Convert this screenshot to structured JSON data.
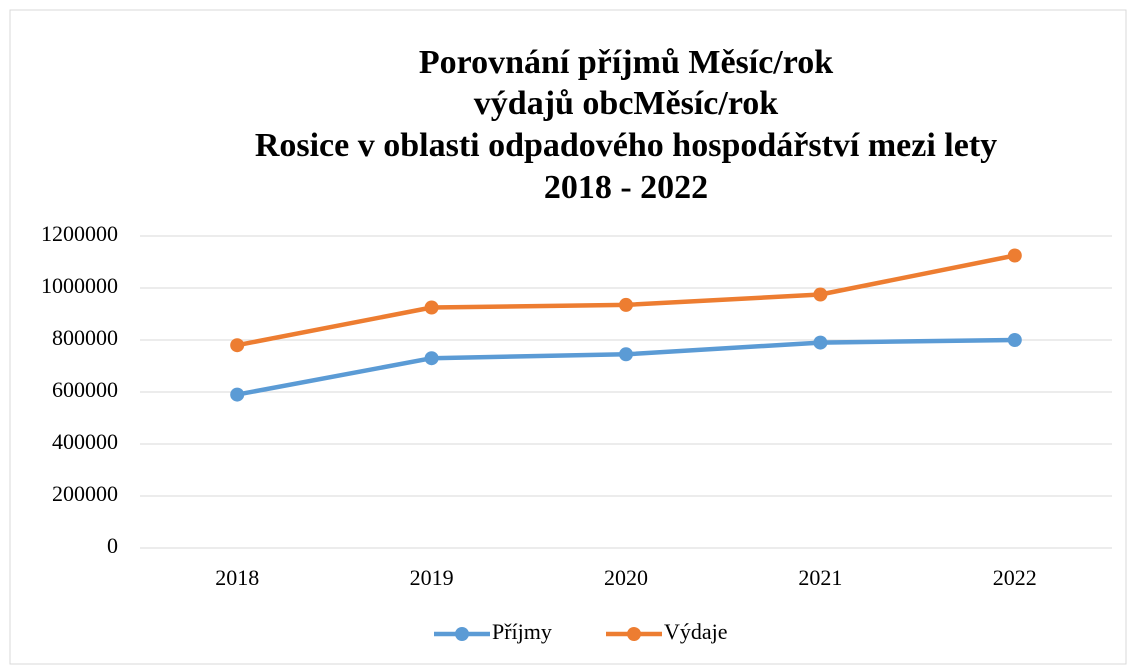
{
  "chart_data": {
    "type": "line",
    "title": [
      "Porovnání příjmů Měsíc/rok",
      "výdajů obcMěsíc/rok",
      "Rosice v oblasti odpadového hospodářství mezi lety",
      "2018 - 2022"
    ],
    "categories": [
      "2018",
      "2019",
      "2020",
      "2021",
      "2022"
    ],
    "series": [
      {
        "name": "Příjmy",
        "color": "#5b9bd5",
        "values": [
          590000,
          730000,
          745000,
          790000,
          800000
        ]
      },
      {
        "name": "Výdaje",
        "color": "#ed7d31",
        "values": [
          780000,
          925000,
          935000,
          975000,
          1125000
        ]
      }
    ],
    "ylim": [
      0,
      1200000
    ],
    "yticks": [
      0,
      200000,
      400000,
      600000,
      800000,
      1000000,
      1200000
    ],
    "grid": true,
    "legend": "bottom"
  }
}
